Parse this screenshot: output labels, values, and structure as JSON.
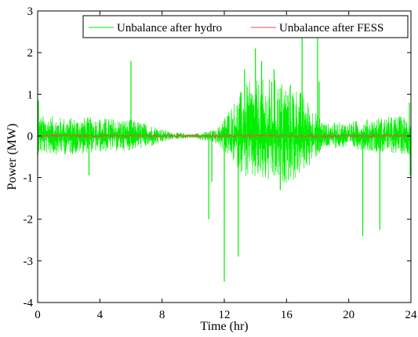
{
  "chart_data": {
    "type": "line",
    "title": "",
    "xlabel": "Time (hr)",
    "ylabel": "Power (MW)",
    "xlim": [
      0,
      24
    ],
    "ylim": [
      -4,
      3
    ],
    "xticks": [
      0,
      4,
      8,
      12,
      16,
      20,
      24
    ],
    "yticks": [
      3,
      2,
      1,
      0,
      -1,
      -2,
      -3,
      -4
    ],
    "grid": false,
    "legend_position": "top-right",
    "series": [
      {
        "name": "Unbalance after hydro",
        "color": "#00ee00",
        "style": "dense noisy trace",
        "envelope": [
          {
            "x": 0,
            "lo": -0.45,
            "hi": 0.5
          },
          {
            "x": 2,
            "lo": -0.45,
            "hi": 0.45
          },
          {
            "x": 4,
            "lo": -0.4,
            "hi": 0.45
          },
          {
            "x": 6,
            "lo": -0.35,
            "hi": 0.4
          },
          {
            "x": 7.5,
            "lo": -0.25,
            "hi": 0.25
          },
          {
            "x": 8.5,
            "lo": -0.1,
            "hi": 0.1
          },
          {
            "x": 10,
            "lo": -0.05,
            "hi": 0.05
          },
          {
            "x": 11.5,
            "lo": -0.2,
            "hi": 0.15
          },
          {
            "x": 12.5,
            "lo": -0.6,
            "hi": 0.8
          },
          {
            "x": 13.5,
            "lo": -1.1,
            "hi": 1.3
          },
          {
            "x": 15,
            "lo": -1.2,
            "hi": 1.4
          },
          {
            "x": 16.5,
            "lo": -1.1,
            "hi": 1.3
          },
          {
            "x": 17.5,
            "lo": -0.7,
            "hi": 0.8
          },
          {
            "x": 18.5,
            "lo": -0.3,
            "hi": 0.3
          },
          {
            "x": 20,
            "lo": -0.3,
            "hi": 0.35
          },
          {
            "x": 22,
            "lo": -0.4,
            "hi": 0.45
          },
          {
            "x": 24,
            "lo": -0.45,
            "hi": 0.5
          }
        ],
        "spikes": [
          {
            "x": 0.05,
            "y": 0.85
          },
          {
            "x": 3.3,
            "y": -0.95
          },
          {
            "x": 6.0,
            "y": 1.8
          },
          {
            "x": 11.0,
            "y": -2.0
          },
          {
            "x": 11.2,
            "y": -1.1
          },
          {
            "x": 12.0,
            "y": -3.5
          },
          {
            "x": 12.9,
            "y": -2.9
          },
          {
            "x": 13.3,
            "y": 1.6
          },
          {
            "x": 14.0,
            "y": 2.1
          },
          {
            "x": 14.4,
            "y": 1.8
          },
          {
            "x": 15.2,
            "y": 1.6
          },
          {
            "x": 15.6,
            "y": -1.3
          },
          {
            "x": 17.0,
            "y": 2.4
          },
          {
            "x": 18.0,
            "y": 2.4
          },
          {
            "x": 18.1,
            "y": 1.3
          },
          {
            "x": 20.9,
            "y": -2.4
          },
          {
            "x": 22.0,
            "y": -2.25
          },
          {
            "x": 23.9,
            "y": 0.8
          },
          {
            "x": 23.95,
            "y": -0.95
          }
        ]
      },
      {
        "name": "Unbalance after FESS",
        "color": "#ff4444",
        "style": "near-zero trace",
        "amplitude": 0.03
      }
    ]
  }
}
